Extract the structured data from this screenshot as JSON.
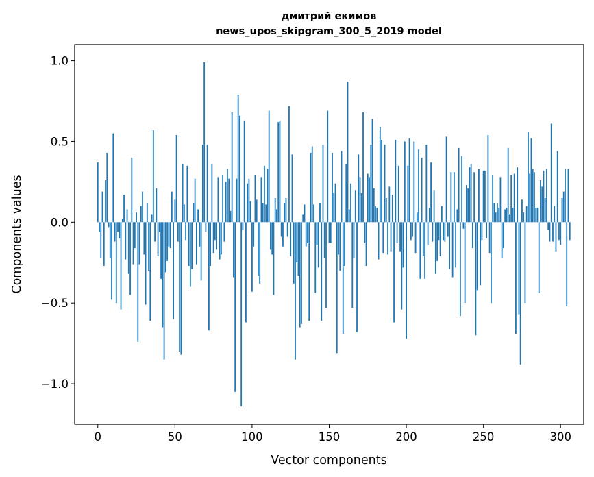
{
  "chart_data": {
    "type": "bar",
    "title_line1": "дмитрий екимов",
    "title_line2": "news_upos_skipgram_300_5_2019 model",
    "xlabel": "Vector components",
    "ylabel": "Components values",
    "xlim": [
      -15,
      315
    ],
    "ylim": [
      -1.25,
      1.1
    ],
    "xticks": [
      0,
      50,
      100,
      150,
      200,
      250,
      300
    ],
    "xtick_labels": [
      "0",
      "50",
      "100",
      "150",
      "200",
      "250",
      "300"
    ],
    "yticks": [
      -1.0,
      -0.5,
      0.0,
      0.5,
      1.0
    ],
    "ytick_labels": [
      "−1.0",
      "−0.5",
      "0.0",
      "0.5",
      "1.0"
    ],
    "bar_color": "#1f77b4",
    "grid": false,
    "values": [
      0.37,
      -0.06,
      -0.22,
      0.19,
      -0.27,
      0.26,
      0.43,
      -0.03,
      -0.22,
      -0.48,
      0.55,
      -0.12,
      -0.5,
      -0.06,
      -0.1,
      -0.54,
      0.02,
      0.17,
      -0.23,
      0.08,
      -0.32,
      -0.45,
      0.4,
      -0.26,
      -0.16,
      0.06,
      -0.74,
      -0.26,
      0.1,
      0.19,
      -0.2,
      -0.51,
      0.12,
      -0.3,
      -0.61,
      0.05,
      0.57,
      -0.12,
      0.21,
      -0.21,
      -0.06,
      -0.35,
      -0.65,
      -0.85,
      -0.31,
      -0.24,
      -0.15,
      -0.16,
      0.19,
      -0.6,
      0.14,
      0.54,
      -0.12,
      -0.8,
      -0.82,
      0.36,
      0.11,
      -0.11,
      0.35,
      -0.27,
      -0.4,
      -0.29,
      0.12,
      0.27,
      -0.26,
      0.08,
      -0.15,
      -0.36,
      0.48,
      0.99,
      -0.06,
      0.48,
      -0.67,
      -0.27,
      0.36,
      -0.19,
      -0.11,
      -0.17,
      0.28,
      -0.23,
      -0.2,
      0.29,
      -0.12,
      0.25,
      0.33,
      0.27,
      0.07,
      0.68,
      -0.34,
      -1.05,
      0.27,
      0.79,
      0.66,
      -1.14,
      -0.05,
      0.63,
      -0.62,
      0.24,
      0.27,
      0.13,
      -0.43,
      -0.15,
      0.29,
      0.14,
      -0.33,
      -0.38,
      0.28,
      0.12,
      0.35,
      0.11,
      0.33,
      0.69,
      -0.17,
      -0.2,
      -0.45,
      0.15,
      0.08,
      0.62,
      0.63,
      -0.09,
      -0.15,
      0.12,
      0.15,
      -0.09,
      0.72,
      -0.21,
      0.42,
      -0.38,
      -0.85,
      -0.25,
      -0.33,
      -0.65,
      -0.63,
      0.05,
      0.11,
      -0.15,
      -0.13,
      -0.61,
      0.43,
      0.47,
      0.11,
      -0.44,
      -0.14,
      -0.28,
      0.12,
      -0.61,
      0.48,
      -0.22,
      -0.53,
      0.69,
      -0.13,
      -0.13,
      0.43,
      0.18,
      0.24,
      -0.81,
      -0.2,
      -0.3,
      0.44,
      -0.69,
      -0.27,
      0.36,
      0.87,
      0.08,
      0.24,
      -0.53,
      -0.22,
      0.2,
      -0.68,
      0.42,
      0.28,
      0.18,
      0.68,
      -0.13,
      -0.27,
      0.3,
      0.28,
      0.48,
      0.64,
      0.21,
      0.1,
      0.09,
      -0.23,
      0.59,
      0.51,
      -0.19,
      0.48,
      0.15,
      -0.2,
      0.22,
      -0.18,
      0.17,
      -0.62,
      0.51,
      -0.13,
      0.35,
      -0.18,
      -0.54,
      -0.28,
      0.5,
      -0.72,
      0.35,
      0.52,
      -0.11,
      -0.09,
      0.5,
      -0.19,
      0.06,
      0.45,
      -0.35,
      0.4,
      -0.21,
      -0.35,
      0.48,
      -0.14,
      0.09,
      0.37,
      -0.12,
      0.2,
      -0.32,
      -0.24,
      -0.11,
      -0.21,
      0.1,
      -0.11,
      -0.12,
      0.53,
      -0.09,
      -0.29,
      0.31,
      -0.34,
      0.31,
      -0.28,
      0.08,
      0.46,
      -0.58,
      0.41,
      -0.04,
      -0.5,
      0.23,
      0.21,
      0.34,
      0.36,
      -0.16,
      0.31,
      -0.7,
      -0.42,
      0.33,
      -0.39,
      -0.11,
      0.32,
      0.32,
      -0.1,
      0.54,
      -0.19,
      -0.5,
      0.29,
      0.12,
      0.06,
      0.12,
      0.09,
      0.28,
      -0.22,
      -0.16,
      0.08,
      0.09,
      0.46,
      0.05,
      0.29,
      0.09,
      0.3,
      -0.69,
      0.34,
      -0.57,
      -0.88,
      0.14,
      0.06,
      -0.5,
      0.1,
      0.56,
      0.3,
      0.52,
      0.33,
      0.31,
      0.09,
      0.09,
      -0.44,
      0.26,
      0.22,
      0.32,
      0.15,
      0.33,
      -0.05,
      -0.12,
      0.61,
      -0.12,
      0.1,
      -0.18,
      0.44,
      -0.11,
      -0.14,
      0.15,
      0.19,
      0.33,
      -0.52,
      0.33,
      -0.11
    ]
  }
}
